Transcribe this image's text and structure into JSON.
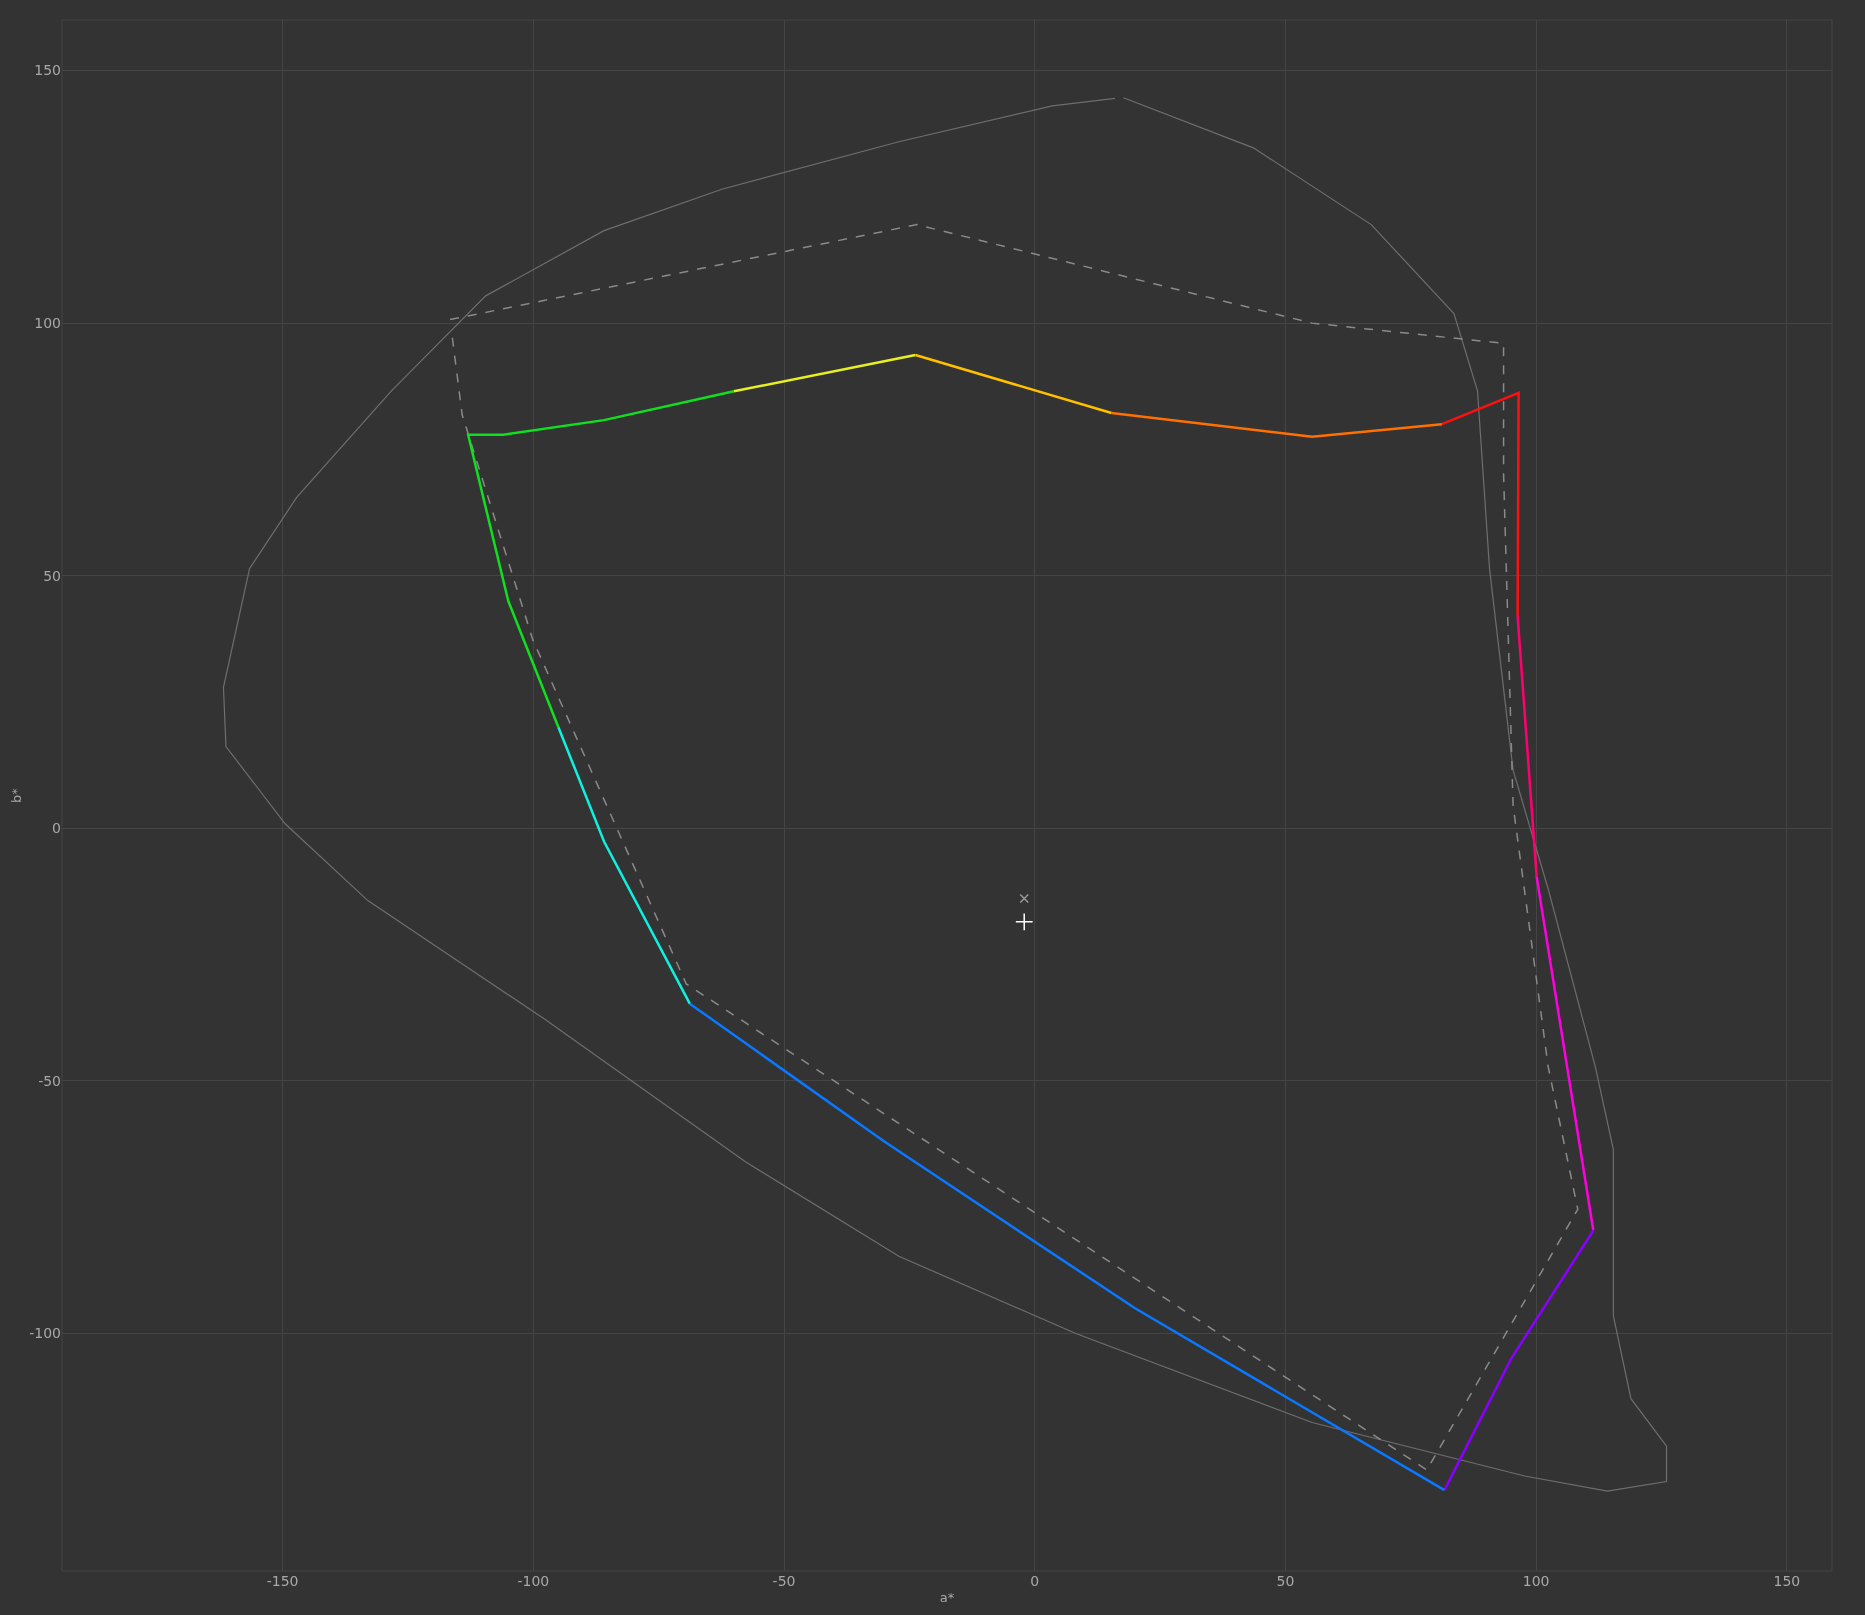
{
  "chart_data": {
    "type": "line",
    "xlabel": "a*",
    "ylabel": "b*",
    "xlim": [
      -194,
      159
    ],
    "ylim": [
      -147,
      160
    ],
    "xticks": [
      -150,
      -100,
      -50,
      0,
      50,
      100,
      150
    ],
    "yticks": [
      -100,
      -50,
      0,
      50,
      100,
      150
    ],
    "grid": true,
    "series": [
      {
        "color": "#6e6e6e",
        "line_style": "solid",
        "x": [
          17.7,
          43.6,
          67.1,
          83.6,
          88.3,
          90.7,
          95.4,
          102.4,
          111.8,
          115.4,
          115.4,
          118.9,
          126,
          126,
          114.2,
          97.7,
          55.3,
          8.2,
          -27.1,
          -57.7,
          -97.7,
          -133,
          -149.5,
          -161.3,
          -161.8,
          -156.6,
          -147.2,
          -128.3,
          -109.5,
          -85.9,
          -62.4,
          -27.1,
          3.5,
          16
        ],
        "values": [
          144.6,
          134.7,
          119.5,
          101.9,
          86.6,
          51.4,
          11.5,
          -12,
          -47.2,
          -63.6,
          -96.5,
          -112.9,
          -122.3,
          -129.3,
          -131.2,
          -128.2,
          -117.6,
          -100,
          -84.7,
          -66,
          -37.8,
          -14.3,
          0.9,
          16.2,
          27.9,
          51.4,
          65.5,
          86.6,
          105.4,
          118.3,
          126.5,
          135.9,
          143,
          144.5
        ]
      },
      {
        "color": "#8a8a8a",
        "line_style": "dashed",
        "x": [
          -116.6,
          -23.5,
          55.3,
          93.5,
          93.5,
          95.4,
          102.4,
          108.3,
          78.2,
          -69.5,
          -100.1,
          -114.2,
          -116.2
        ],
        "values": [
          100.7,
          119.5,
          100,
          96,
          70.2,
          4.5,
          -47.2,
          -75.4,
          -127,
          -30.8,
          37.3,
          81.9,
          97.5
        ]
      },
      {
        "color": "#ff1010",
        "line_style": "solid",
        "x": [
          81.2,
          96.5,
          96.3
        ],
        "values": [
          80,
          86.2,
          42
        ]
      },
      {
        "color": "#ff0070",
        "line_style": "solid",
        "x": [
          96.3,
          100.1
        ],
        "values": [
          42,
          -9.6
        ]
      },
      {
        "color": "#ff00e0",
        "line_style": "solid",
        "x": [
          100.1,
          111.4
        ],
        "values": [
          -9.6,
          -79.6
        ]
      },
      {
        "color": "#8a00ff",
        "line_style": "solid",
        "x": [
          111.4,
          95,
          81.7
        ],
        "values": [
          -79.6,
          -105,
          -131
        ]
      },
      {
        "color": "#0a78ff",
        "line_style": "solid",
        "x": [
          81.7,
          20,
          -30,
          -68.8
        ],
        "values": [
          -131,
          -95,
          -62,
          -34.7
        ]
      },
      {
        "color": "#10f0e0",
        "line_style": "solid",
        "x": [
          -68.8,
          -85.9,
          -95
        ],
        "values": [
          -34.7,
          -2.6,
          20
        ]
      },
      {
        "color": "#10e020",
        "line_style": "solid",
        "x": [
          -95,
          -105,
          -113,
          -106,
          -85.9,
          -60
        ],
        "values": [
          20,
          45,
          77.9,
          77.9,
          80.8,
          86.5
        ]
      },
      {
        "color": "#e8f020",
        "line_style": "solid",
        "x": [
          -60,
          -23.8
        ],
        "values": [
          86.5,
          93.7
        ]
      },
      {
        "color": "#ffc000",
        "line_style": "solid",
        "x": [
          -23.8,
          15.3
        ],
        "values": [
          93.7,
          82.2
        ]
      },
      {
        "color": "#ff7000",
        "line_style": "solid",
        "x": [
          15.3,
          55.3,
          81.2
        ],
        "values": [
          82.2,
          77.5,
          80
        ]
      },
      {
        "type": "scatter",
        "marker": "x",
        "color": "#9a9a9a",
        "x": [
          -2.1
        ],
        "values": [
          -13.9
        ]
      },
      {
        "type": "scatter",
        "marker": "cross",
        "color": "#ffffff",
        "x": [
          -2.1
        ],
        "values": [
          -18.5
        ]
      }
    ]
  }
}
